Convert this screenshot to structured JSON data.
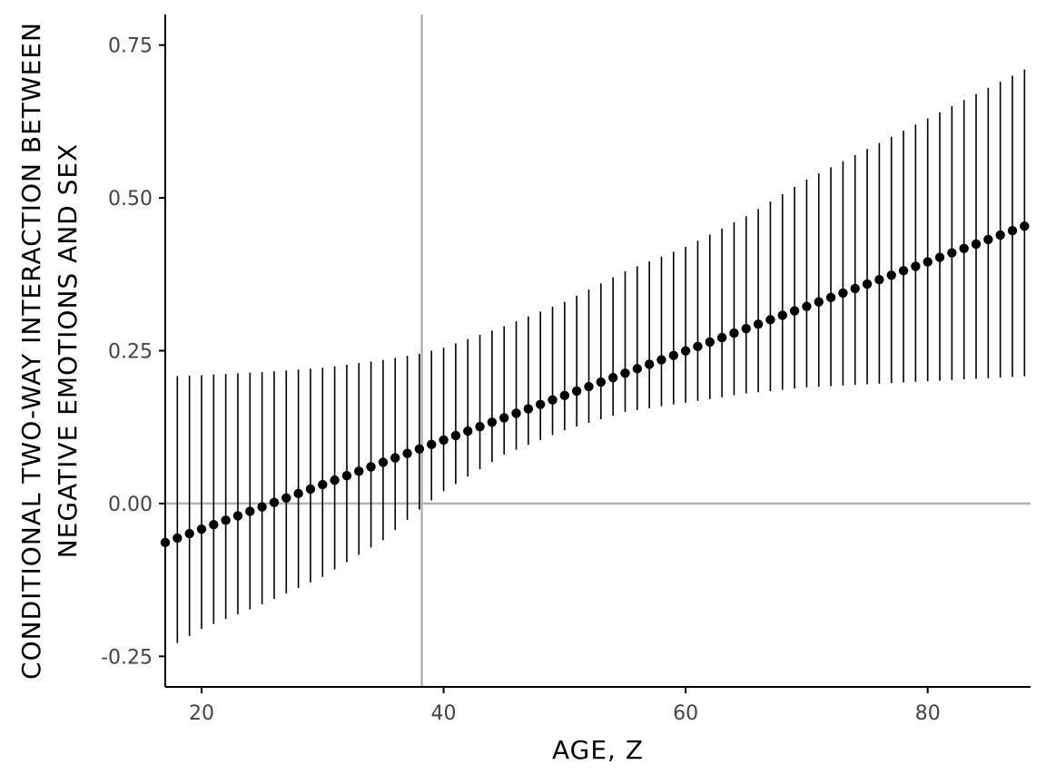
{
  "chart_data": {
    "type": "scatter",
    "title": "",
    "xlabel": "AGE, Z",
    "ylabel_lines": [
      "CONDITIONAL TWO-WAY INTERACTION BETWEEN",
      "NEGATIVE EMOTIONS AND SEX"
    ],
    "xlim": [
      17,
      88.5
    ],
    "ylim": [
      -0.3,
      0.8
    ],
    "x_ticks": [
      20,
      40,
      60,
      80
    ],
    "x_tick_labels": [
      "20",
      "40",
      "60",
      "80"
    ],
    "y_ticks": [
      -0.25,
      0,
      0.25,
      0.5,
      0.75
    ],
    "y_tick_labels": [
      "-0.25",
      "0.00",
      "0.25",
      "0.50",
      "0.75"
    ],
    "grid": false,
    "legend": "none",
    "reference_lines": {
      "vertical_x": 38.2,
      "horizontal_y": 0
    },
    "x_range": {
      "start": 17,
      "end": 88,
      "step": 1
    },
    "estimate_line": {
      "intercept": -0.1877,
      "slope": 0.007289
    },
    "ci_anchor_points": {
      "x": [
        17,
        20,
        25,
        30,
        35,
        38,
        40,
        45,
        50,
        55,
        60,
        65,
        70,
        75,
        80,
        85,
        88
      ],
      "lower": [
        -0.24,
        -0.205,
        -0.165,
        -0.12,
        -0.06,
        -0.01,
        0.02,
        0.08,
        0.12,
        0.15,
        0.165,
        0.18,
        0.19,
        0.195,
        0.2,
        0.205,
        0.208
      ],
      "upper": [
        0.208,
        0.21,
        0.215,
        0.222,
        0.235,
        0.245,
        0.255,
        0.29,
        0.33,
        0.38,
        0.42,
        0.47,
        0.53,
        0.58,
        0.63,
        0.68,
        0.71
      ]
    },
    "colors": {
      "points": "#000000",
      "bars": "#000000",
      "reference": "#b3b3b3",
      "axis": "#000000",
      "tick_text": "#444444"
    }
  }
}
